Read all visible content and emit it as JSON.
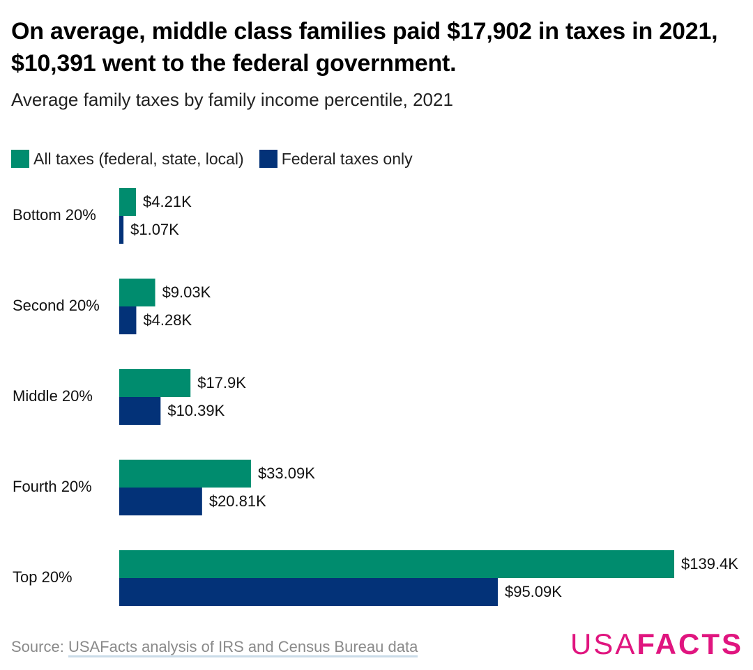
{
  "header": {
    "title": "On average, middle class families paid $17,902 in taxes in 2021, $10,391 went to the federal government.",
    "subtitle": "Average family taxes by family income percentile, 2021"
  },
  "colors": {
    "all_taxes": "#008c6e",
    "federal": "#033278"
  },
  "chart_data": {
    "type": "bar",
    "orientation": "horizontal",
    "title": "On average, middle class families paid $17,902 in taxes in 2021, $10,391 went to the federal government.",
    "subtitle": "Average family taxes by family income percentile, 2021",
    "categories": [
      "Bottom 20%",
      "Second 20%",
      "Middle 20%",
      "Fourth 20%",
      "Top 20%"
    ],
    "series": [
      {
        "name": "All taxes (federal, state, local)",
        "values": [
          4210,
          9030,
          17900,
          33090,
          139400
        ],
        "labels": [
          "$4.21K",
          "$9.03K",
          "$17.9K",
          "$33.09K",
          "$139.4K"
        ]
      },
      {
        "name": "Federal taxes only",
        "values": [
          1070,
          4280,
          10390,
          20810,
          95090
        ],
        "labels": [
          "$1.07K",
          "$4.28K",
          "$10.39K",
          "$20.81K",
          "$95.09K"
        ]
      }
    ],
    "xlim": [
      0,
      139400
    ],
    "grid": false,
    "legend_position": "top-left",
    "xlabel": "",
    "ylabel": ""
  },
  "footer": {
    "source_prefix": "Source: ",
    "source_link": "USAFacts analysis of IRS and Census Bureau data",
    "logo_part1": "USA",
    "logo_part2": "FACTS"
  }
}
